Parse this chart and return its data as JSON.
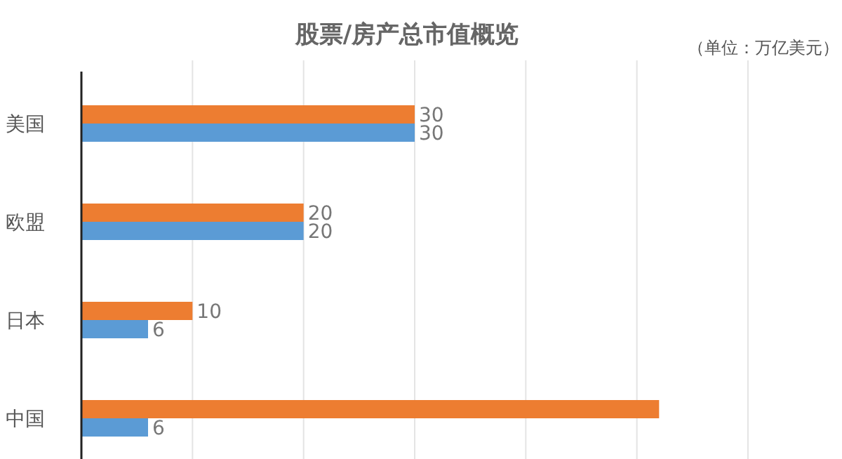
{
  "chart_data": {
    "type": "bar",
    "orientation": "horizontal",
    "title": "股票/房产总市值概览",
    "annotations": [
      "（单位：万亿美元）"
    ],
    "categories": [
      "美国",
      "欧盟",
      "日本",
      "中国"
    ],
    "series": [
      {
        "color": "#ed7d31",
        "values": [
          30,
          20,
          10,
          52
        ],
        "value_labels": [
          "30",
          "20",
          "10",
          null
        ]
      },
      {
        "color": "#5b9bd5",
        "values": [
          30,
          20,
          6,
          6
        ],
        "value_labels": [
          "30",
          "20",
          "6",
          "6"
        ]
      }
    ],
    "xticks": [
      {
        "value": 10,
        "label": null
      },
      {
        "value": 20,
        "label": null
      },
      {
        "value": 30,
        "label": null
      },
      {
        "value": 40,
        "label": null
      },
      {
        "value": 50,
        "label": null
      },
      {
        "value": 60,
        "label": null
      }
    ],
    "grid": "x",
    "tick_labels": "y"
  }
}
